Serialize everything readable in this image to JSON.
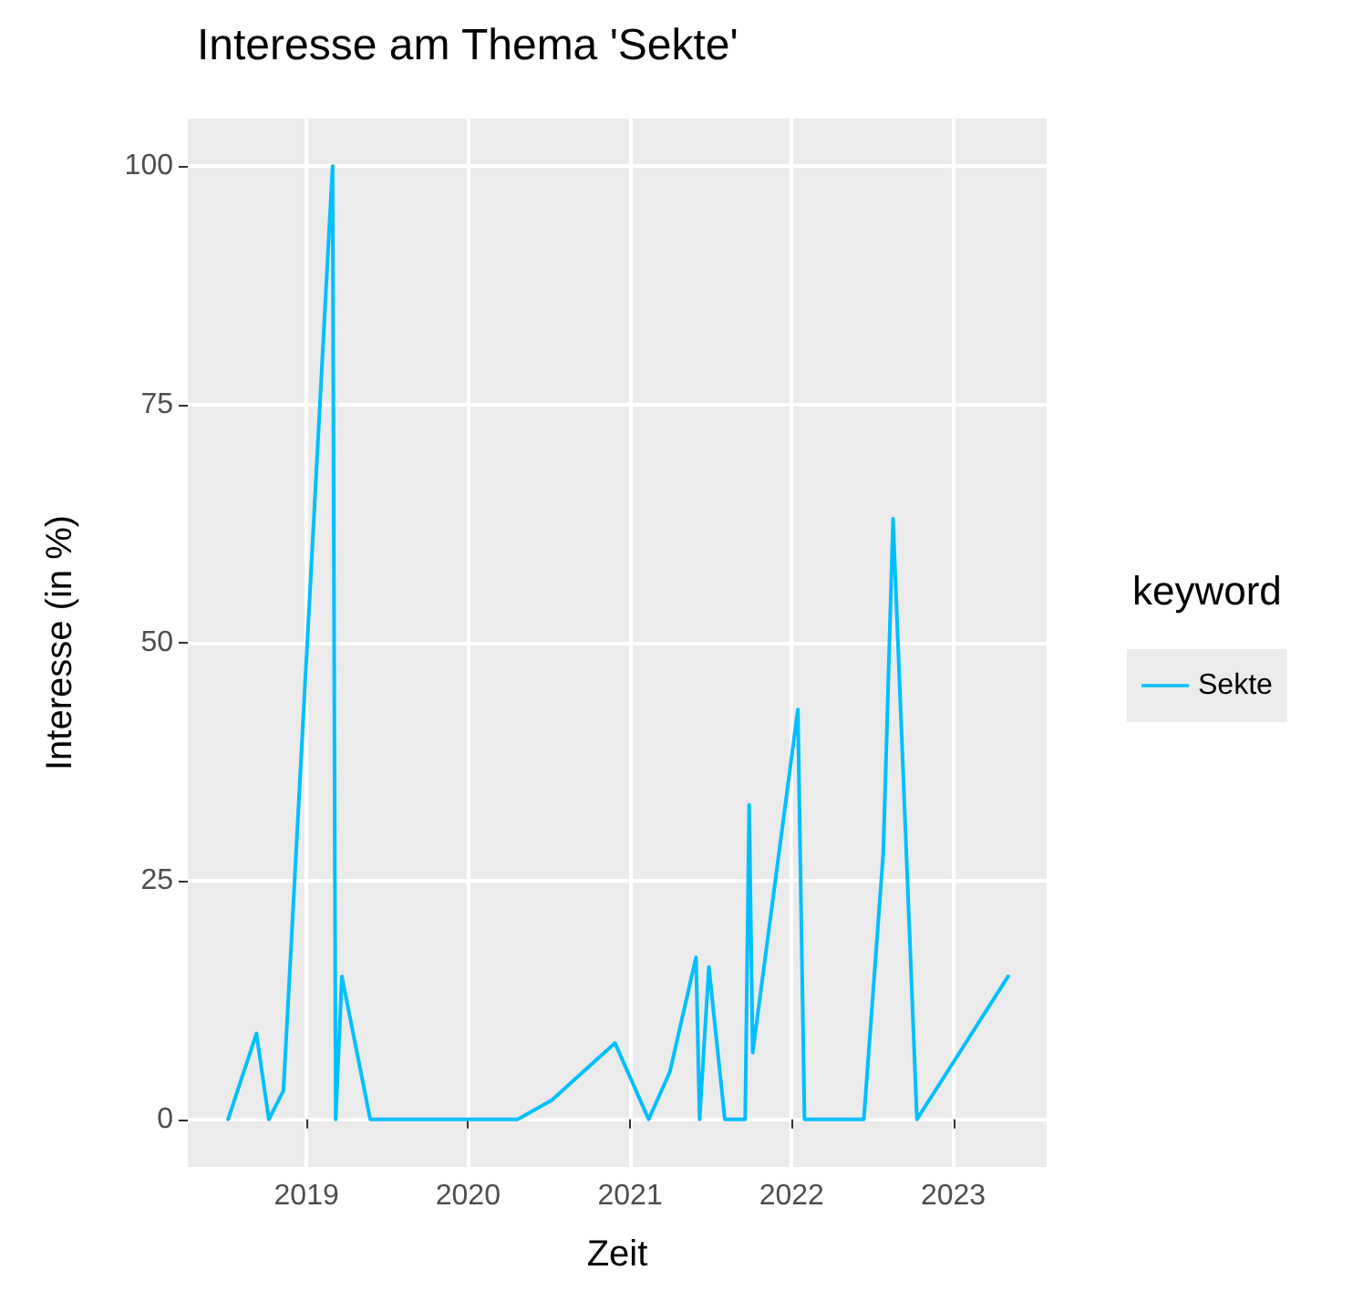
{
  "chart_data": {
    "type": "line",
    "title": "Interesse am Thema 'Sekte'",
    "xlabel": "Zeit",
    "ylabel": "Interesse (in %)",
    "legend_title": "keyword",
    "x": [
      "2018-07-08",
      "2018-09-10",
      "2018-10-08",
      "2018-11-10",
      "2019-03-01",
      "2019-03-08",
      "2019-03-22",
      "2019-05-25",
      "2020-04-22",
      "2020-07-08",
      "2020-11-28",
      "2021-02-12",
      "2021-04-01",
      "2021-05-30",
      "2021-06-07",
      "2021-06-28",
      "2021-08-03",
      "2021-09-18",
      "2021-09-27",
      "2021-10-05",
      "2022-01-15",
      "2022-01-30",
      "2022-06-13",
      "2022-07-27",
      "2022-08-18",
      "2022-10-11",
      "2023-05-05"
    ],
    "series": [
      {
        "name": "Sekte",
        "color": "#00bfff",
        "values": [
          0,
          9,
          0,
          3,
          100,
          0,
          15,
          0,
          0,
          2,
          8,
          0,
          5,
          17,
          0,
          16,
          0,
          0,
          33,
          7,
          43,
          0,
          0,
          28,
          63,
          0,
          15
        ]
      }
    ],
    "xlim": [
      "2018-04-08",
      "2023-07-31"
    ],
    "xticks": [
      "2019",
      "2020",
      "2021",
      "2022",
      "2023"
    ],
    "ylim": [
      -5,
      105
    ],
    "yticks": [
      0,
      25,
      50,
      75,
      100
    ],
    "grid": true,
    "legend": "right",
    "marker": "none",
    "line_style": "solid"
  }
}
